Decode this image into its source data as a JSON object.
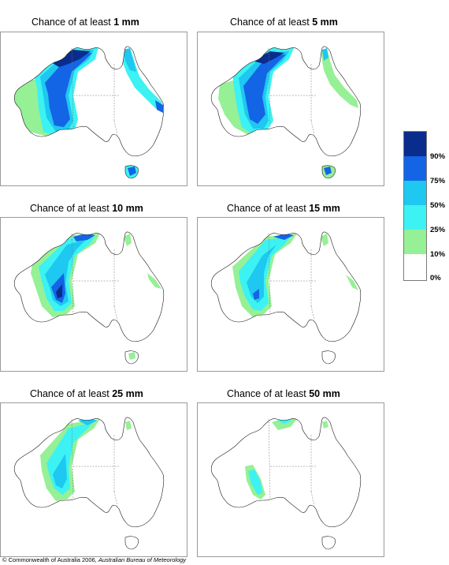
{
  "panels": [
    {
      "prefix": "Chance of at least ",
      "amount": "1 mm"
    },
    {
      "prefix": "Chance of at least ",
      "amount": "5 mm"
    },
    {
      "prefix": "Chance of at least ",
      "amount": "10 mm"
    },
    {
      "prefix": "Chance of at least ",
      "amount": "15 mm"
    },
    {
      "prefix": "Chance of at least ",
      "amount": "25 mm"
    },
    {
      "prefix": "Chance of at least ",
      "amount": "50 mm"
    }
  ],
  "legend": {
    "labels": [
      "90%",
      "75%",
      "50%",
      "25%",
      "10%",
      "0%"
    ],
    "colors": [
      "#0a2c8c",
      "#1464e6",
      "#1ec8f0",
      "#3cf2f2",
      "#96f096",
      "#ffffff"
    ]
  },
  "credit": {
    "main": "© Commonwealth of Australia 2006, ",
    "org": "Australian Bureau of Meteorology"
  }
}
